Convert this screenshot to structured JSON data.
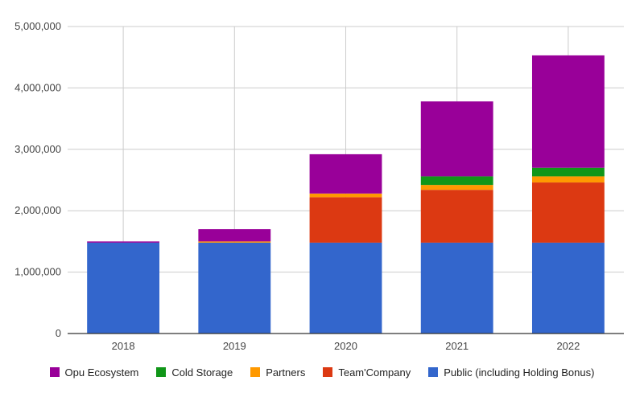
{
  "chart_data": {
    "type": "bar",
    "stacked": true,
    "categories": [
      "2018",
      "2019",
      "2020",
      "2021",
      "2022"
    ],
    "series": [
      {
        "name": "Public (including Holding Bonus)",
        "color": "#3366cc",
        "values": [
          1480000,
          1480000,
          1480000,
          1480000,
          1480000
        ]
      },
      {
        "name": "Team'Company",
        "color": "#dc3912",
        "values": [
          0,
          0,
          740000,
          860000,
          980000
        ]
      },
      {
        "name": "Partners",
        "color": "#ff9900",
        "values": [
          0,
          20000,
          60000,
          80000,
          100000
        ]
      },
      {
        "name": "Cold Storage",
        "color": "#109618",
        "values": [
          0,
          0,
          0,
          140000,
          140000
        ]
      },
      {
        "name": "Opu Ecosystem",
        "color": "#990099",
        "values": [
          20000,
          200000,
          640000,
          1220000,
          1830000
        ]
      }
    ],
    "ylim": [
      0,
      5000000
    ],
    "yticks": [
      "0",
      "1,000,000",
      "2,000,000",
      "3,000,000",
      "4,000,000",
      "5,000,000"
    ],
    "grid": true,
    "legend_position": "bottom",
    "legend_order": [
      "Opu Ecosystem",
      "Cold Storage",
      "Partners",
      "Team'Company",
      "Public (including Holding Bonus)"
    ]
  }
}
